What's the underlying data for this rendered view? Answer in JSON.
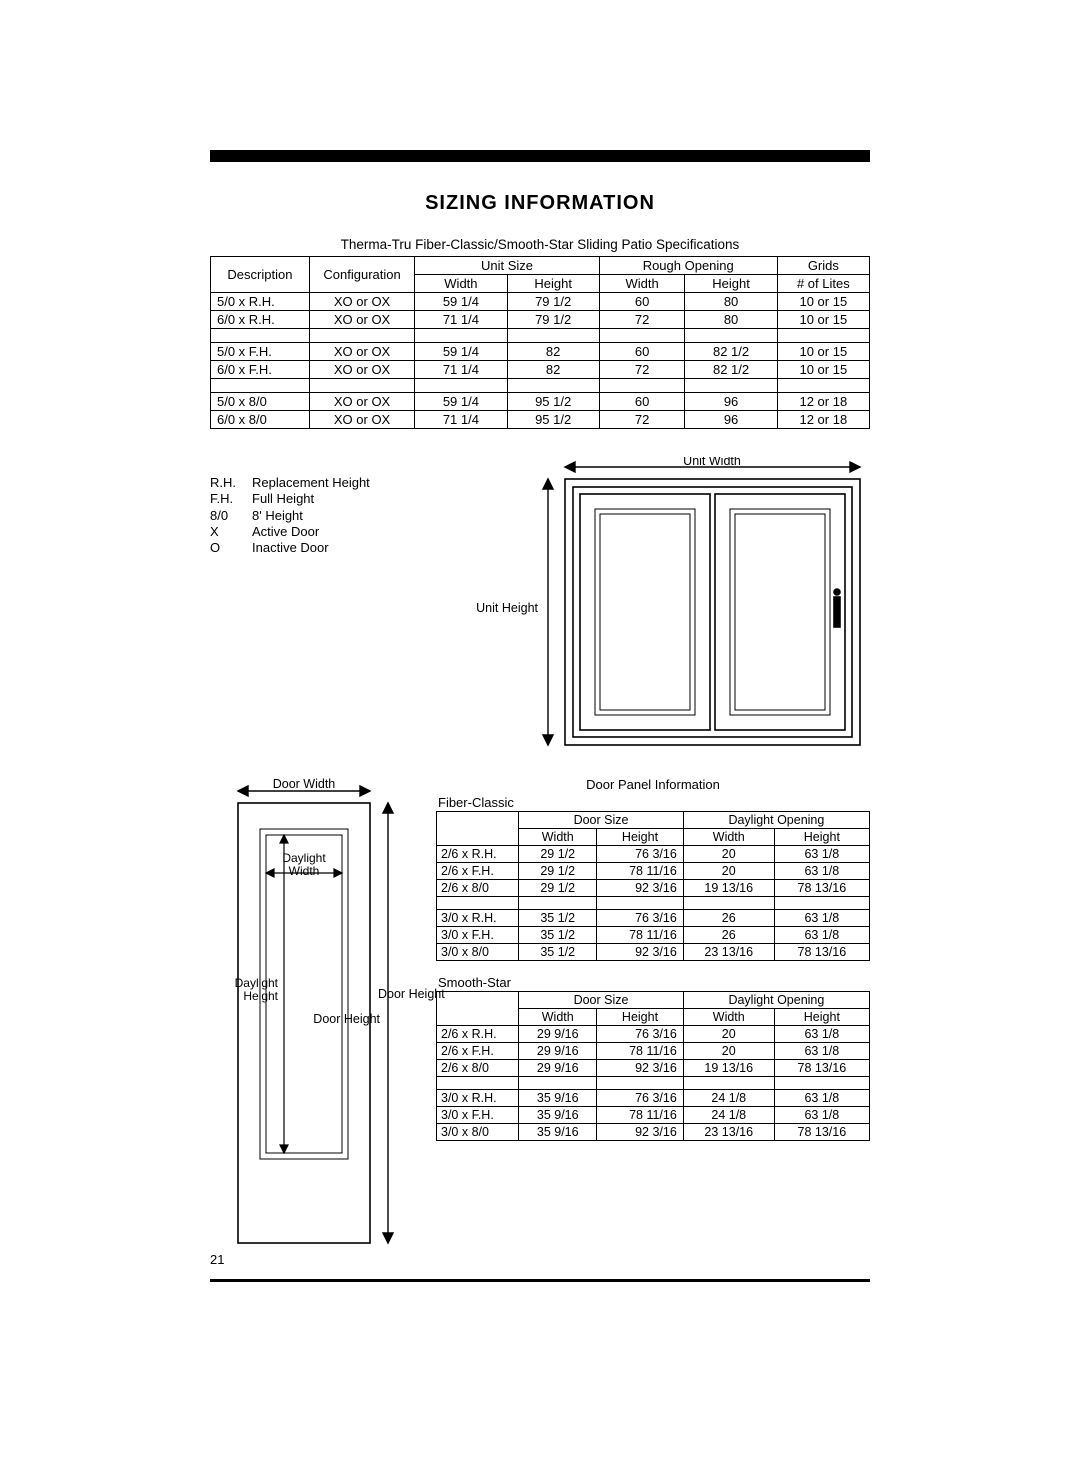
{
  "title": "SIZING INFORMATION",
  "subtitle": "Therma-Tru Fiber-Classic/Smooth-Star Sliding Patio Specifications",
  "spec_headers": {
    "description": "Description",
    "configuration": "Configuration",
    "unit_size": "Unit Size",
    "rough_opening": "Rough Opening",
    "grids": "Grids",
    "width": "Width",
    "height": "Height",
    "lites": "# of Lites"
  },
  "spec_groups": [
    [
      {
        "desc": "5/0 x R.H.",
        "config": "XO or OX",
        "uw": "59 1/4",
        "uh": "79 1/2",
        "rw": "60",
        "rh": "80",
        "g": "10 or 15"
      },
      {
        "desc": "6/0 x R.H.",
        "config": "XO or OX",
        "uw": "71 1/4",
        "uh": "79 1/2",
        "rw": "72",
        "rh": "80",
        "g": "10 or 15"
      }
    ],
    [
      {
        "desc": "5/0 x F.H.",
        "config": "XO or OX",
        "uw": "59 1/4",
        "uh": "82",
        "rw": "60",
        "rh": "82 1/2",
        "g": "10 or 15"
      },
      {
        "desc": "6/0 x F.H.",
        "config": "XO or OX",
        "uw": "71 1/4",
        "uh": "82",
        "rw": "72",
        "rh": "82 1/2",
        "g": "10 or 15"
      }
    ],
    [
      {
        "desc": "5/0 x 8/0",
        "config": "XO or OX",
        "uw": "59 1/4",
        "uh": "95 1/2",
        "rw": "60",
        "rh": "96",
        "g": "12 or 18"
      },
      {
        "desc": "6/0 x 8/0",
        "config": "XO or OX",
        "uw": "71 1/4",
        "uh": "95 1/2",
        "rw": "72",
        "rh": "96",
        "g": "12 or 18"
      }
    ]
  ],
  "legend": [
    {
      "k": "R.H.",
      "v": "Replacement Height"
    },
    {
      "k": "F.H.",
      "v": "Full Height"
    },
    {
      "k": "8/0",
      "v": "8' Height"
    },
    {
      "k": "X",
      "v": "Active Door"
    },
    {
      "k": "O",
      "v": "Inactive Door"
    }
  ],
  "diag": {
    "unit_width": "Unit Width",
    "unit_height": "Unit Height",
    "door_width": "Door Width",
    "door_height": "Door Height",
    "daylight_width": "Daylight\nWidth",
    "daylight_height": "Daylight\nHeight"
  },
  "panel_title": "Door Panel Information",
  "panel_fc": "Fiber-Classic",
  "panel_ss": "Smooth-Star",
  "panel_headers": {
    "door_size": "Door Size",
    "daylight": "Daylight Opening",
    "width": "Width",
    "height": "Height"
  },
  "fc_groups": [
    [
      {
        "d": "2/6 x R.H.",
        "w": "29 1/2",
        "h": "76   3/16",
        "dw": "20",
        "dh": "63 1/8"
      },
      {
        "d": "2/6 x F.H.",
        "w": "29 1/2",
        "h": "78 11/16",
        "dw": "20",
        "dh": "63 1/8"
      },
      {
        "d": "2/6 x 8/0",
        "w": "29 1/2",
        "h": "92   3/16",
        "dw": "19 13/16",
        "dh": "78 13/16"
      }
    ],
    [
      {
        "d": "3/0 x R.H.",
        "w": "35 1/2",
        "h": "76   3/16",
        "dw": "26",
        "dh": "63 1/8"
      },
      {
        "d": "3/0 x F.H.",
        "w": "35 1/2",
        "h": "78 11/16",
        "dw": "26",
        "dh": "63 1/8"
      },
      {
        "d": "3/0 x 8/0",
        "w": "35 1/2",
        "h": "92   3/16",
        "dw": "23 13/16",
        "dh": "78 13/16"
      }
    ]
  ],
  "ss_groups": [
    [
      {
        "d": "2/6 x R.H.",
        "w": "29   9/16",
        "h": "76   3/16",
        "dw": "20",
        "dh": "63 1/8"
      },
      {
        "d": "2/6 x F.H.",
        "w": "29   9/16",
        "h": "78 11/16",
        "dw": "20",
        "dh": "63 1/8"
      },
      {
        "d": "2/6 x 8/0",
        "w": "29   9/16",
        "h": "92   3/16",
        "dw": "19 13/16",
        "dh": "78 13/16"
      }
    ],
    [
      {
        "d": "3/0 x R.H.",
        "w": "35   9/16",
        "h": "76   3/16",
        "dw": "24 1/8",
        "dh": "63 1/8"
      },
      {
        "d": "3/0 x F.H.",
        "w": "35   9/16",
        "h": "78 11/16",
        "dw": "24 1/8",
        "dh": "63 1/8"
      },
      {
        "d": "3/0 x 8/0",
        "w": "35   9/16",
        "h": "92   3/16",
        "dw": "23 13/16",
        "dh": "78 13/16"
      }
    ]
  ],
  "page_num": "21",
  "colors": {
    "rule": "#000000",
    "text": "#000000",
    "bg": "#ffffff"
  }
}
